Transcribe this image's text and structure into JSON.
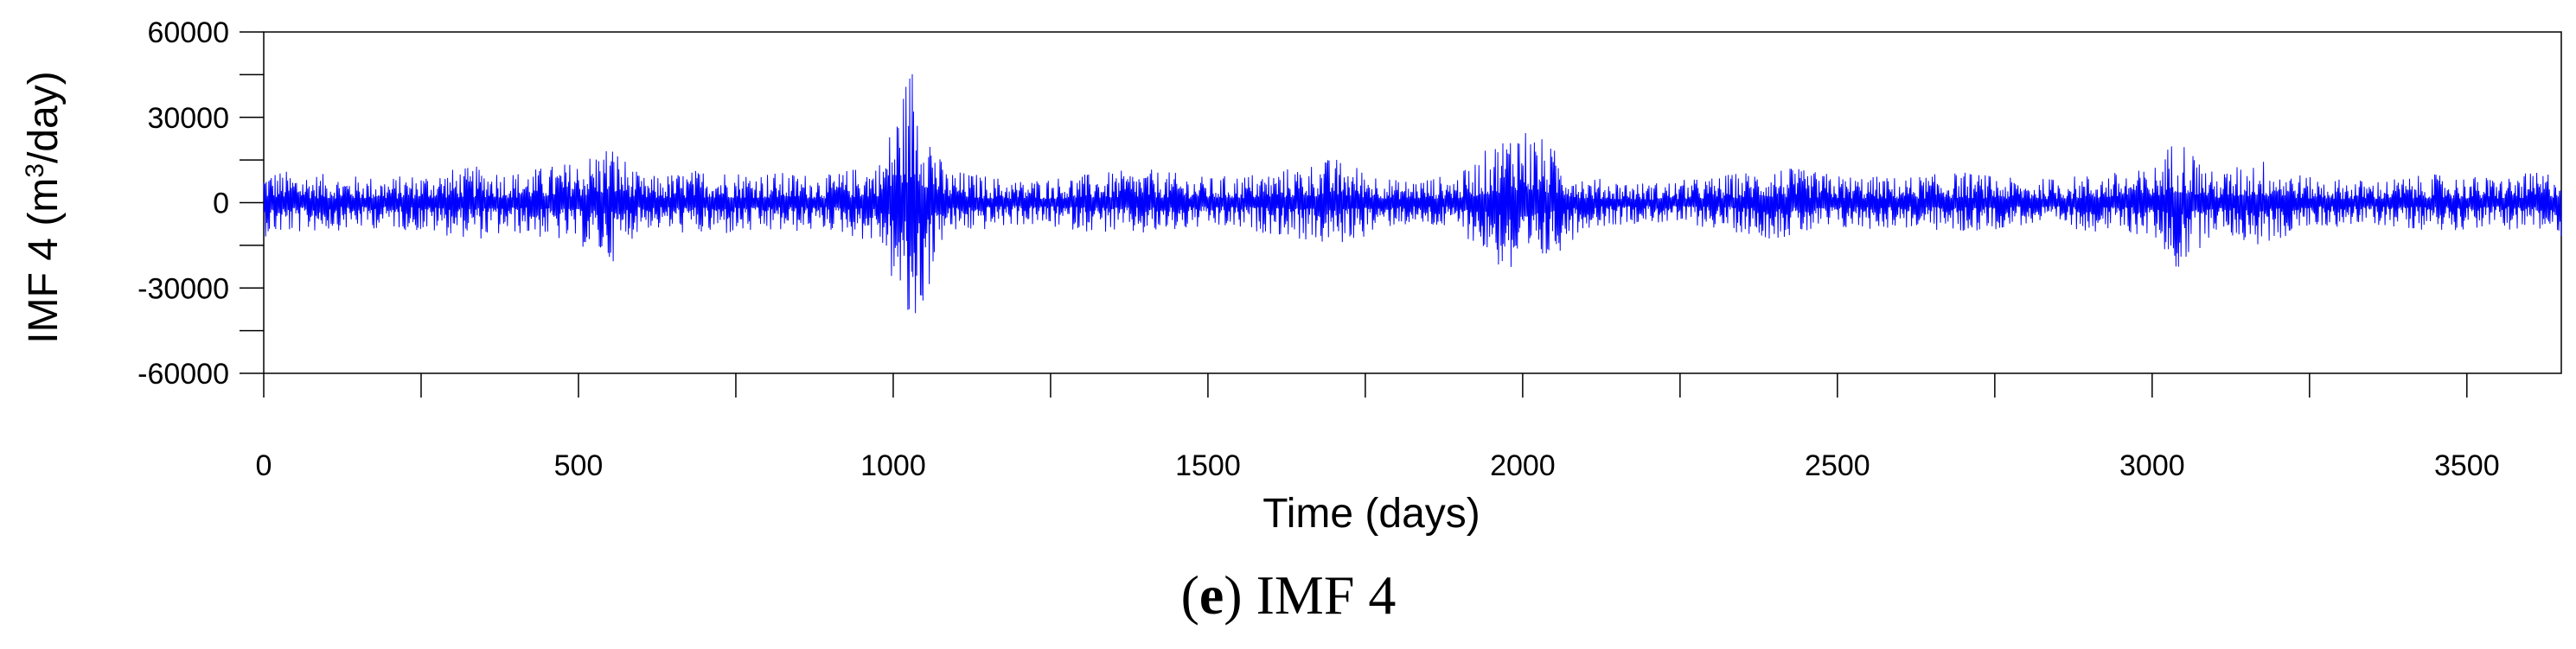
{
  "chart_data": {
    "type": "line",
    "title": "",
    "xlabel": "Time (days)",
    "ylabel_main": "IMF 4 (m",
    "ylabel_sup": "3",
    "ylabel_tail": "/day)",
    "xlim": [
      0,
      3650
    ],
    "ylim": [
      -60000,
      60000
    ],
    "x_ticks": [
      "0",
      "500",
      "1000",
      "1500",
      "2000",
      "2500",
      "3000",
      "3500"
    ],
    "x_tick_values": [
      0,
      500,
      1000,
      1500,
      2000,
      2500,
      3000,
      3500
    ],
    "y_ticks": [
      "60000",
      "30000",
      "0",
      "-30000",
      "-60000"
    ],
    "y_tick_values": [
      60000,
      30000,
      0,
      -30000,
      -60000
    ],
    "series_color": "#0000ff",
    "grid": false,
    "n_points": 3650,
    "envelope_x": [
      0,
      100,
      200,
      300,
      350,
      400,
      500,
      550,
      600,
      700,
      800,
      900,
      980,
      1030,
      1080,
      1200,
      1300,
      1400,
      1500,
      1600,
      1700,
      1800,
      1900,
      1995,
      2100,
      2200,
      2300,
      2400,
      2500,
      2600,
      2700,
      2800,
      2900,
      3000,
      3040,
      3100,
      3170,
      3250,
      3350,
      3450,
      3550,
      3650
    ],
    "envelope_amplitude": [
      12000,
      10000,
      9000,
      12000,
      13000,
      11000,
      15000,
      22000,
      9000,
      12000,
      11000,
      10000,
      15000,
      52000,
      12000,
      8000,
      10000,
      12000,
      9000,
      11000,
      16000,
      8000,
      10000,
      30000,
      9000,
      7000,
      9000,
      13000,
      10000,
      9000,
      11000,
      8000,
      10000,
      12000,
      25000,
      10000,
      16000,
      9000,
      8000,
      10000,
      9000,
      12000
    ]
  },
  "caption": {
    "letter": "e",
    "text": " IMF 4"
  }
}
